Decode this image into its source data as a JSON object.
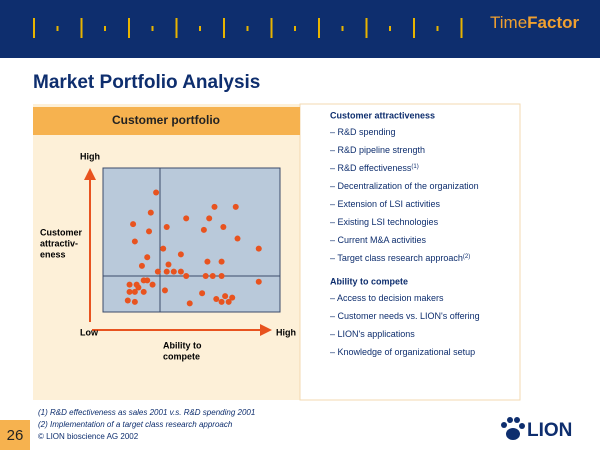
{
  "header": {
    "logo_part1": "Time",
    "logo_part2": "Factor"
  },
  "title": "Market Portfolio Analysis",
  "chart_data": {
    "type": "scatter",
    "title": "Customer portfolio",
    "y_label": [
      "Customer",
      "attractiv-",
      "eness"
    ],
    "y_high": "High",
    "x_low": "Low",
    "x_high": "High",
    "x_label": [
      "Ability to",
      "compete"
    ],
    "color": "#e8531f",
    "xlim": [
      0,
      100
    ],
    "ylim": [
      0,
      100
    ],
    "x": [
      30,
      27,
      17,
      36,
      26,
      63,
      75,
      60,
      47,
      68,
      57,
      18,
      76,
      88,
      34,
      25,
      44,
      59,
      22,
      37,
      31,
      36,
      40,
      44,
      67,
      58,
      62,
      67,
      47,
      25,
      23,
      15,
      19,
      28,
      20,
      15,
      18,
      23,
      88,
      35,
      56,
      14,
      18,
      49,
      69,
      73,
      67,
      71,
      64
    ],
    "y": [
      83,
      69,
      61,
      59,
      56,
      73,
      73,
      65,
      65,
      59,
      57,
      49,
      51,
      44,
      44,
      38,
      40,
      35,
      32,
      33,
      28,
      28,
      28,
      28,
      35,
      25,
      25,
      25,
      25,
      22,
      22,
      19,
      19,
      19,
      17,
      14,
      14,
      14,
      21,
      15,
      13,
      8,
      7,
      6,
      11,
      10,
      7,
      7,
      9
    ]
  },
  "criteria": [
    {
      "heading": "Customer attractiveness",
      "items": [
        {
          "text": "– R&D spending"
        },
        {
          "text": "– R&D pipeline strength"
        },
        {
          "text": "– R&D effectiveness",
          "note": "(1)"
        },
        {
          "text": "– Decentralization of the organization"
        },
        {
          "text": "– Extension of LSI activities"
        },
        {
          "text": "– Existing LSI technologies"
        },
        {
          "text": "– Current M&A activities"
        },
        {
          "text": "– Target class research approach",
          "note": "(2)"
        }
      ]
    },
    {
      "heading": "Ability to compete",
      "items": [
        {
          "text": "– Access to decision makers"
        },
        {
          "text": "– Customer needs vs. LION's offering"
        },
        {
          "text": "– LION's applications"
        },
        {
          "text": "– Knowledge of organizational setup"
        }
      ]
    }
  ],
  "footnotes": [
    "(1) R&D effectiveness as sales 2001 v.s. R&D spending 2001",
    "(2) Implementation of a target class research approach"
  ],
  "copyright": "© LION bioscience AG 2002",
  "page_number": "26",
  "brand": "LION"
}
